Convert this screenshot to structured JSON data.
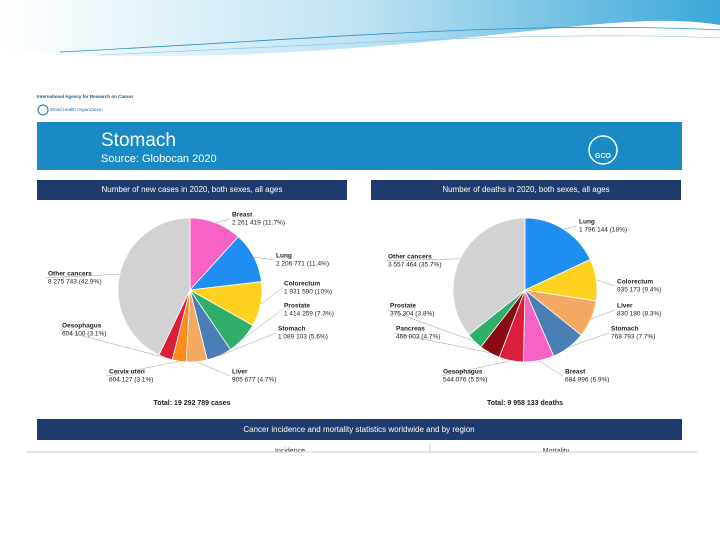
{
  "header": {
    "agency": "International Agency for Research on Cancer",
    "who": "World Health Organization",
    "title": "Stomach",
    "subtitle": "Source: Globocan 2020",
    "logo_text": "GCO"
  },
  "chart_data": [
    {
      "type": "pie",
      "title": "Number of new cases in 2020, both sexes, all ages",
      "categories": [
        "Breast",
        "Lung",
        "Colorectum",
        "Prostate",
        "Stomach",
        "Liver",
        "Cervix uteri",
        "Oesophagus",
        "Other cancers"
      ],
      "values": [
        2261419,
        2206771,
        1931590,
        1414259,
        1089103,
        905677,
        604127,
        604100,
        8275743
      ],
      "value_labels": [
        "2 261 419 (11.7%)",
        "2 206 771 (11.4%)",
        "1 931 590 (10%)",
        "1 414 259 (7.3%)",
        "1 089 103 (5.6%)",
        "905 677 (4.7%)",
        "604 127 (3.1%)",
        "604 100 (3.1%)",
        "8 275 743 (42.9%)"
      ],
      "colors": [
        "#f763c4",
        "#1f8ef1",
        "#ffd21f",
        "#2fae6a",
        "#4a7fb5",
        "#f5a862",
        "#ff8c1a",
        "#dc1e3c",
        "#d2d2d2"
      ],
      "total": "Total: 19 292 789 cases"
    },
    {
      "type": "pie",
      "title": "Number of deaths in 2020, both sexes, all ages",
      "categories": [
        "Lung",
        "Colorectum",
        "Liver",
        "Stomach",
        "Breast",
        "Oesophagus",
        "Pancreas",
        "Prostate",
        "Other cancers"
      ],
      "values": [
        1796144,
        935173,
        830180,
        768793,
        684996,
        544076,
        466003,
        375304,
        3557464
      ],
      "value_labels": [
        "1 796 144 (18%)",
        "935 173 (9.4%)",
        "830 180 (8.3%)",
        "768 793 (7.7%)",
        "684 996 (6.9%)",
        "544 076 (5.5%)",
        "466 003 (4.7%)",
        "375 304 (3.8%)",
        "3 557 464 (35.7%)"
      ],
      "colors": [
        "#1f8ef1",
        "#ffd21f",
        "#f5a862",
        "#4a7fb5",
        "#f763c4",
        "#dc1e3c",
        "#8b0a14",
        "#2fae6a",
        "#d2d2d2"
      ],
      "total": "Total: 9 958 133 deaths"
    }
  ],
  "footer": {
    "title": "Cancer incidence and mortality statistics worldwide and by region",
    "incidence": "Incidence",
    "mortality": "Mortality"
  }
}
